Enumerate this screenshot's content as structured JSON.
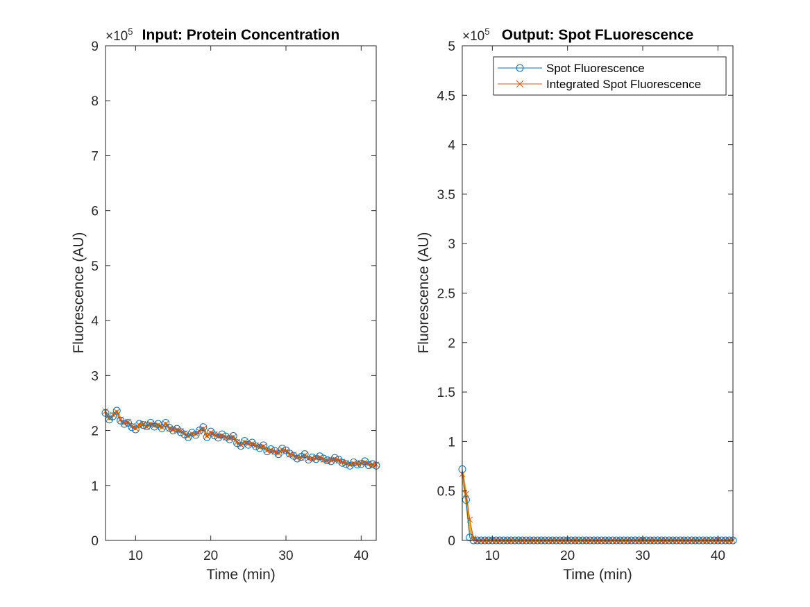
{
  "chart_data": [
    {
      "type": "line",
      "title": "Input: Protein Concentration",
      "xlabel": "Time (min)",
      "ylabel": "Fluorescence (AU)",
      "exponent_label": "×10",
      "exponent": "5",
      "xlim": [
        6,
        42
      ],
      "ylim": [
        0,
        900000
      ],
      "xticks": [
        10,
        20,
        30,
        40
      ],
      "yticks": [
        0,
        100000,
        200000,
        300000,
        400000,
        500000,
        600000,
        700000,
        800000,
        900000
      ],
      "ytick_labels": [
        "0",
        "1",
        "2",
        "3",
        "4",
        "5",
        "6",
        "7",
        "8",
        "9"
      ],
      "x": [
        6.0,
        6.5,
        7.0,
        7.5,
        8.0,
        8.5,
        9.0,
        9.5,
        10.0,
        10.5,
        11.0,
        11.5,
        12.0,
        12.5,
        13.0,
        13.5,
        14.0,
        14.5,
        15.0,
        15.5,
        16.0,
        16.5,
        17.0,
        17.5,
        18.0,
        18.5,
        19.0,
        19.5,
        20.0,
        20.5,
        21.0,
        21.5,
        22.0,
        22.5,
        23.0,
        23.5,
        24.0,
        24.5,
        25.0,
        25.5,
        26.0,
        26.5,
        27.0,
        27.5,
        28.0,
        28.5,
        29.0,
        29.5,
        30.0,
        30.5,
        31.0,
        31.5,
        32.0,
        32.5,
        33.0,
        33.5,
        34.0,
        34.5,
        35.0,
        35.5,
        36.0,
        36.5,
        37.0,
        37.5,
        38.0,
        38.5,
        39.0,
        39.5,
        40.0,
        40.5,
        41.0,
        41.5,
        42.0
      ],
      "series": [
        {
          "name": "Spot Fluorescence",
          "color": "#0072BD",
          "marker": "circle",
          "values": [
            232000,
            220000,
            226000,
            236000,
            218000,
            212000,
            214000,
            206000,
            202000,
            212000,
            210000,
            208000,
            214000,
            207000,
            212000,
            204000,
            214000,
            205000,
            200000,
            203000,
            197000,
            193000,
            188000,
            196000,
            192000,
            200000,
            206000,
            188000,
            198000,
            191000,
            187000,
            193000,
            189000,
            184000,
            190000,
            177000,
            172000,
            181000,
            174000,
            178000,
            171000,
            168000,
            173000,
            162000,
            166000,
            163000,
            157000,
            167000,
            164000,
            158000,
            154000,
            149000,
            152000,
            157000,
            147000,
            151000,
            148000,
            153000,
            149000,
            146000,
            144000,
            150000,
            147000,
            141000,
            139000,
            136000,
            142000,
            138000,
            139000,
            144000,
            137000,
            139000,
            136000
          ]
        },
        {
          "name": "Integrated Spot Fluorescence",
          "color": "#D95319",
          "marker": "x",
          "values": [
            235000,
            223000,
            229000,
            234000,
            220000,
            214000,
            216000,
            208000,
            204000,
            210000,
            212000,
            206000,
            212000,
            209000,
            210000,
            206000,
            212000,
            203000,
            202000,
            201000,
            199000,
            195000,
            190000,
            194000,
            194000,
            198000,
            203000,
            190000,
            196000,
            193000,
            189000,
            191000,
            187000,
            186000,
            188000,
            179000,
            174000,
            179000,
            176000,
            176000,
            173000,
            170000,
            171000,
            164000,
            164000,
            161000,
            159000,
            165000,
            162000,
            156000,
            156000,
            151000,
            150000,
            155000,
            149000,
            149000,
            150000,
            151000,
            147000,
            144000,
            146000,
            148000,
            145000,
            143000,
            141000,
            138000,
            140000,
            140000,
            141000,
            142000,
            139000,
            137000,
            138000
          ]
        },
        {
          "color": "#EDB120",
          "marker": "none",
          "values": [
            233000,
            221000,
            227000,
            235000,
            219000,
            213000,
            215000,
            207000,
            203000,
            211000,
            211000,
            207000,
            213000,
            208000,
            211000,
            205000,
            213000,
            204000,
            201000,
            202000,
            198000,
            194000,
            189000,
            195000,
            193000,
            199000,
            204000,
            189000,
            197000,
            192000,
            188000,
            192000,
            188000,
            185000,
            189000,
            178000,
            173000,
            180000,
            175000,
            177000,
            172000,
            169000,
            172000,
            163000,
            165000,
            162000,
            158000,
            166000,
            163000,
            157000,
            155000,
            150000,
            151000,
            156000,
            148000,
            150000,
            149000,
            152000,
            148000,
            145000,
            145000,
            149000,
            146000,
            142000,
            140000,
            137000,
            141000,
            139000,
            140000,
            143000,
            138000,
            138000,
            137000
          ]
        }
      ]
    },
    {
      "type": "line",
      "title": "Output: Spot FLuorescence",
      "xlabel": "Time (min)",
      "ylabel": "Fluorescence (AU)",
      "exponent_label": "×10",
      "exponent": "5",
      "xlim": [
        6,
        42
      ],
      "ylim": [
        0,
        500000
      ],
      "xticks": [
        10,
        20,
        30,
        40
      ],
      "yticks": [
        0,
        50000,
        100000,
        150000,
        200000,
        250000,
        300000,
        350000,
        400000,
        450000,
        500000
      ],
      "ytick_labels": [
        "0",
        "0.5",
        "1",
        "1.5",
        "2",
        "2.5",
        "3",
        "3.5",
        "4",
        "4.5",
        "5"
      ],
      "legend": {
        "location": "top-right",
        "entries": [
          "Spot Fluorescence",
          "Integrated Spot Fluorescence"
        ]
      },
      "x": [
        6.0,
        6.5,
        7.0,
        7.5,
        8.0,
        8.5,
        9.0,
        9.5,
        10.0,
        10.5,
        11.0,
        11.5,
        12.0,
        12.5,
        13.0,
        13.5,
        14.0,
        14.5,
        15.0,
        15.5,
        16.0,
        16.5,
        17.0,
        17.5,
        18.0,
        18.5,
        19.0,
        19.5,
        20.0,
        20.5,
        21.0,
        21.5,
        22.0,
        22.5,
        23.0,
        23.5,
        24.0,
        24.5,
        25.0,
        25.5,
        26.0,
        26.5,
        27.0,
        27.5,
        28.0,
        28.5,
        29.0,
        29.5,
        30.0,
        30.5,
        31.0,
        31.5,
        32.0,
        32.5,
        33.0,
        33.5,
        34.0,
        34.5,
        35.0,
        35.5,
        36.0,
        36.5,
        37.0,
        37.5,
        38.0,
        38.5,
        39.0,
        39.5,
        40.0,
        40.5,
        41.0,
        41.5,
        42.0
      ],
      "series": [
        {
          "name": "Spot Fluorescence",
          "color": "#0072BD",
          "marker": "circle",
          "values": [
            72000,
            41000,
            3000,
            0,
            0,
            0,
            0,
            0,
            0,
            0,
            0,
            0,
            0,
            0,
            0,
            0,
            0,
            0,
            0,
            0,
            0,
            0,
            0,
            0,
            0,
            0,
            0,
            0,
            0,
            0,
            0,
            0,
            0,
            0,
            0,
            0,
            0,
            0,
            0,
            0,
            0,
            0,
            0,
            0,
            0,
            0,
            0,
            0,
            0,
            0,
            0,
            0,
            0,
            0,
            0,
            0,
            0,
            0,
            0,
            0,
            0,
            0,
            0,
            0,
            0,
            0,
            0,
            0,
            0,
            0,
            0,
            0,
            0
          ]
        },
        {
          "name": "Integrated Spot Fluorescence",
          "color": "#D95319",
          "marker": "x",
          "values": [
            67000,
            47000,
            21000,
            2000,
            0,
            0,
            0,
            0,
            0,
            0,
            0,
            0,
            0,
            0,
            0,
            0,
            0,
            0,
            0,
            0,
            0,
            0,
            0,
            0,
            0,
            0,
            0,
            0,
            0,
            0,
            0,
            0,
            0,
            0,
            0,
            0,
            0,
            0,
            0,
            0,
            0,
            0,
            0,
            0,
            0,
            0,
            0,
            0,
            0,
            0,
            0,
            0,
            0,
            0,
            0,
            0,
            0,
            0,
            0,
            0,
            0,
            0,
            0,
            0,
            0,
            0,
            0,
            0,
            0,
            0,
            0,
            0,
            0
          ]
        },
        {
          "color": "#EDB120",
          "marker": "none",
          "values": [
            69000,
            44000,
            12000,
            1000,
            0,
            0,
            0,
            0,
            0,
            0,
            0,
            0,
            0,
            0,
            0,
            0,
            0,
            0,
            0,
            0,
            0,
            0,
            0,
            0,
            0,
            0,
            0,
            0,
            0,
            0,
            0,
            0,
            0,
            0,
            0,
            0,
            0,
            0,
            0,
            0,
            0,
            0,
            0,
            0,
            0,
            0,
            0,
            0,
            0,
            0,
            0,
            0,
            0,
            0,
            0,
            0,
            0,
            0,
            0,
            0,
            0,
            0,
            0,
            0,
            0,
            0,
            0,
            0,
            0,
            0,
            0,
            0,
            0
          ]
        }
      ]
    }
  ]
}
